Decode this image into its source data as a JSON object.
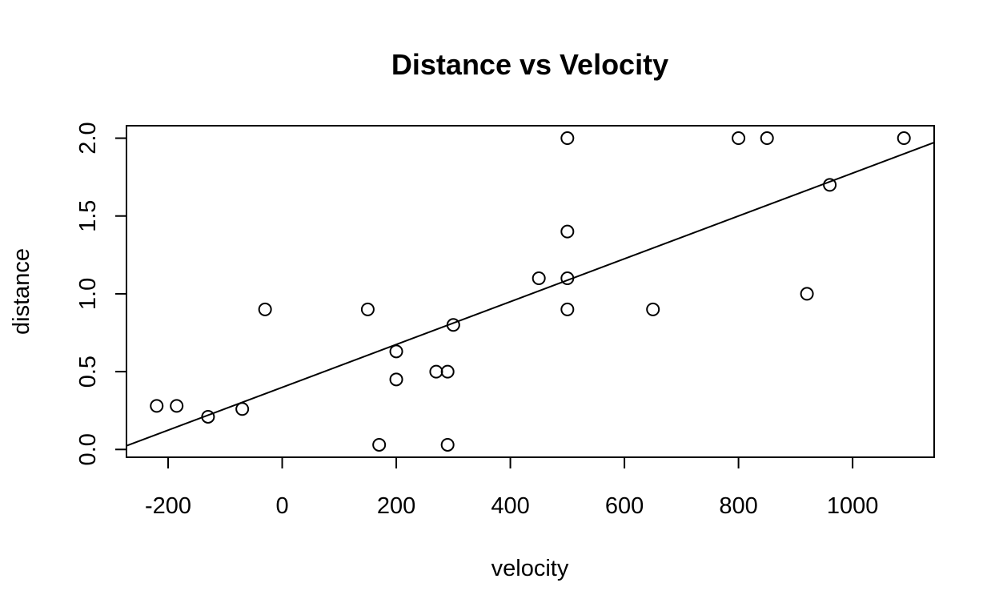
{
  "chart_data": {
    "type": "scatter",
    "title": "Distance vs Velocity",
    "xlabel": "velocity",
    "ylabel": "distance",
    "xlim": [
      -273,
      1143
    ],
    "ylim": [
      -0.05,
      2.08
    ],
    "x_ticks": [
      -200,
      0,
      200,
      400,
      600,
      800,
      1000
    ],
    "y_ticks": [
      0.0,
      0.5,
      1.0,
      1.5,
      2.0
    ],
    "x_tick_labels": [
      "-200",
      "0",
      "200",
      "400",
      "600",
      "800",
      "1000"
    ],
    "y_tick_labels": [
      "0.0",
      "0.5",
      "1.0",
      "1.5",
      "2.0"
    ],
    "grid": false,
    "legend": "none",
    "marker": "open-circle",
    "points": [
      {
        "x": -220,
        "y": 0.28
      },
      {
        "x": -185,
        "y": 0.28
      },
      {
        "x": -130,
        "y": 0.21
      },
      {
        "x": -70,
        "y": 0.26
      },
      {
        "x": -30,
        "y": 0.9
      },
      {
        "x": 150,
        "y": 0.9
      },
      {
        "x": 170,
        "y": 0.03
      },
      {
        "x": 200,
        "y": 0.63
      },
      {
        "x": 200,
        "y": 0.45
      },
      {
        "x": 270,
        "y": 0.5
      },
      {
        "x": 290,
        "y": 0.5
      },
      {
        "x": 290,
        "y": 0.03
      },
      {
        "x": 300,
        "y": 0.8
      },
      {
        "x": 450,
        "y": 1.1
      },
      {
        "x": 500,
        "y": 2.0
      },
      {
        "x": 500,
        "y": 1.4
      },
      {
        "x": 500,
        "y": 1.1
      },
      {
        "x": 500,
        "y": 0.9
      },
      {
        "x": 650,
        "y": 0.9
      },
      {
        "x": 800,
        "y": 2.0
      },
      {
        "x": 850,
        "y": 2.0
      },
      {
        "x": 920,
        "y": 1.0
      },
      {
        "x": 960,
        "y": 1.7
      },
      {
        "x": 1090,
        "y": 2.0
      }
    ],
    "regression_line": {
      "intercept": 0.39917,
      "slope": 0.0013762
    },
    "colors": {
      "foreground": "#000000",
      "background": "#ffffff"
    }
  }
}
